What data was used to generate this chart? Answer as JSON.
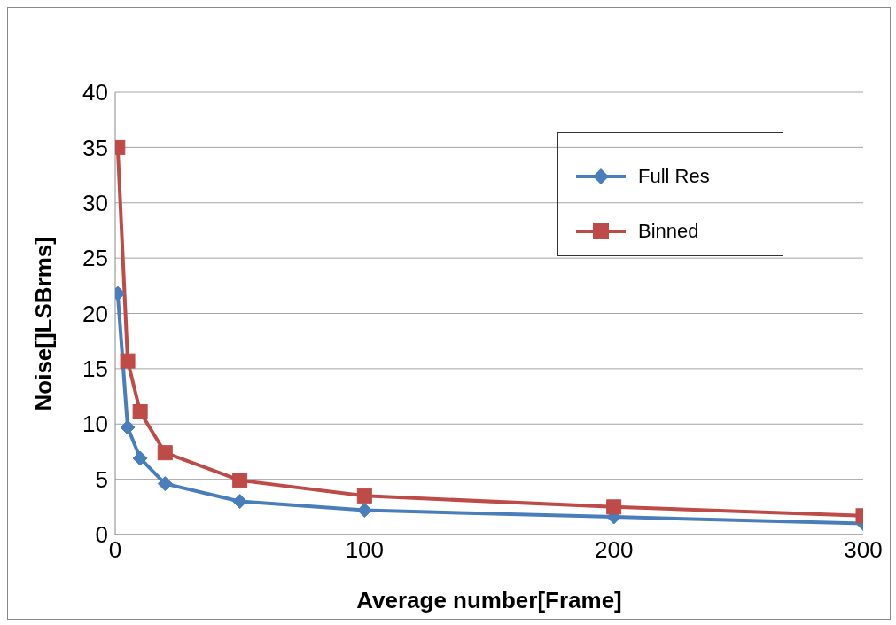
{
  "chart_data": {
    "type": "line",
    "xlabel": "Average number[Frame]",
    "ylabel": "Noise[]LSBrms]",
    "x": [
      1,
      5,
      10,
      20,
      50,
      100,
      200,
      300
    ],
    "series": [
      {
        "name": "Full Res",
        "color": "#4a7ebb",
        "marker": "diamond",
        "values": [
          21.8,
          9.7,
          6.9,
          4.6,
          3.0,
          2.2,
          1.6,
          1.0
        ]
      },
      {
        "name": "Binned",
        "color": "#be4b48",
        "marker": "square",
        "values": [
          35.0,
          15.7,
          11.1,
          7.4,
          4.9,
          3.5,
          2.5,
          1.7
        ]
      }
    ],
    "xlim": [
      0,
      300
    ],
    "xticks": [
      0,
      100,
      200,
      300
    ],
    "ylim": [
      0,
      40
    ],
    "yticks": [
      0,
      5,
      10,
      15,
      20,
      25,
      30,
      35,
      40
    ],
    "grid": "y",
    "legend": "top right",
    "line_style": "solid"
  }
}
